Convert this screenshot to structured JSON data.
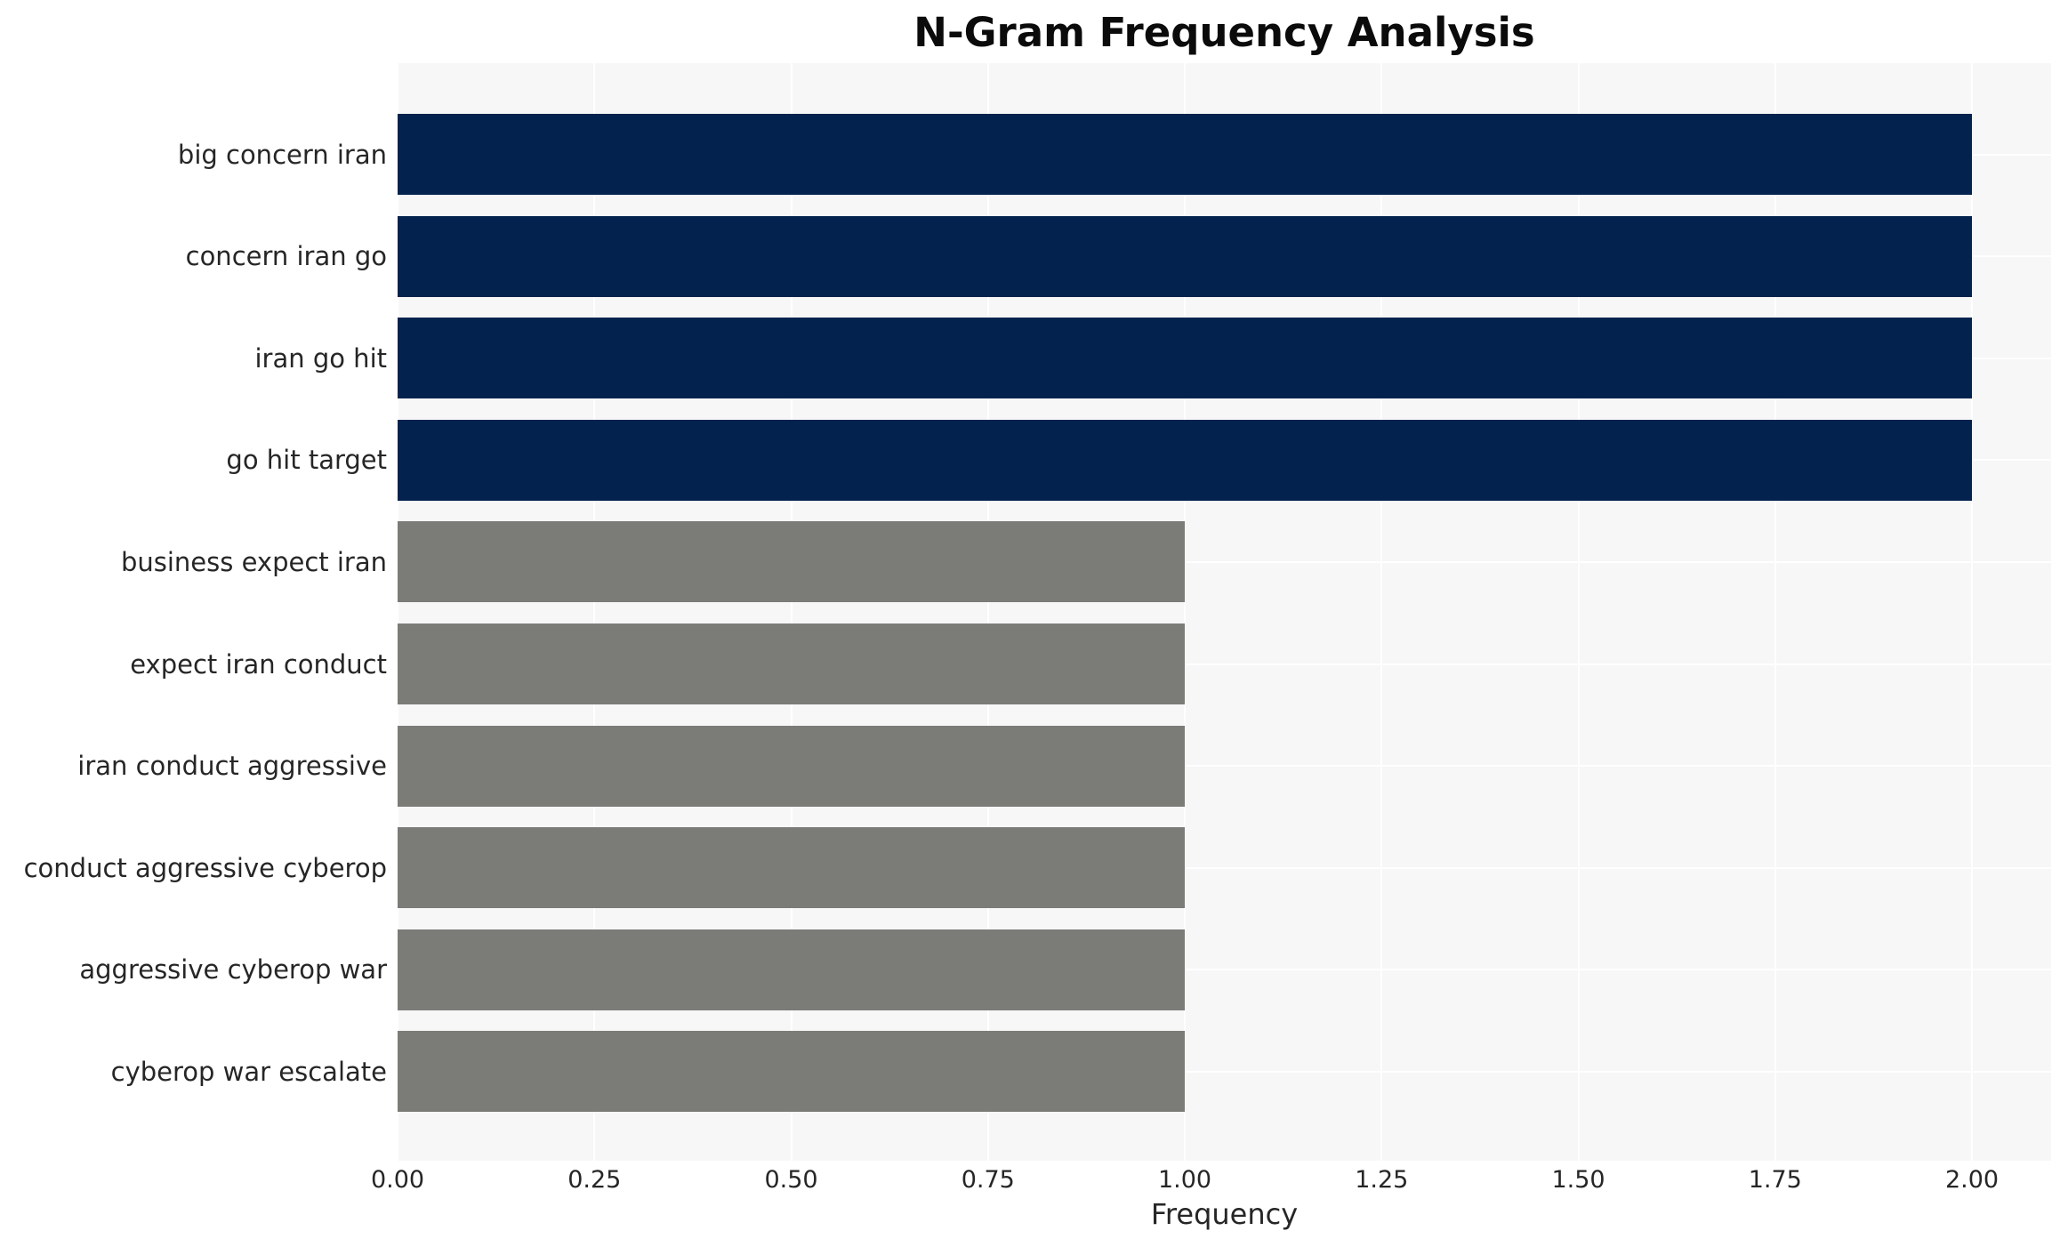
{
  "chart_data": {
    "type": "bar",
    "orientation": "horizontal",
    "title": "N-Gram Frequency Analysis",
    "xlabel": "Frequency",
    "ylabel": "",
    "categories": [
      "big concern iran",
      "concern iran go",
      "iran go hit",
      "go hit target",
      "business expect iran",
      "expect iran conduct",
      "iran conduct aggressive",
      "conduct aggressive cyberop",
      "aggressive cyberop war",
      "cyberop war escalate"
    ],
    "values": [
      2,
      2,
      2,
      2,
      1,
      1,
      1,
      1,
      1,
      1
    ],
    "bar_colors": [
      "#03234e",
      "#03234e",
      "#03234e",
      "#03234e",
      "#7b7b78",
      "#7b7b78",
      "#7b7b78",
      "#7b7b78",
      "#7b7b78",
      "#7b7b78"
    ],
    "x_ticks": [
      "0.00",
      "0.25",
      "0.50",
      "0.75",
      "1.00",
      "1.25",
      "1.50",
      "1.75",
      "2.00"
    ],
    "xlim": [
      0,
      2.1
    ],
    "grid": true,
    "legend": false,
    "colors": {
      "bar_high": "#03234e",
      "bar_low": "#7b7b78",
      "plot_background": "#f7f7f7",
      "gridline": "#ffffff",
      "text": "#262626",
      "title": "#0b0b0b"
    }
  }
}
